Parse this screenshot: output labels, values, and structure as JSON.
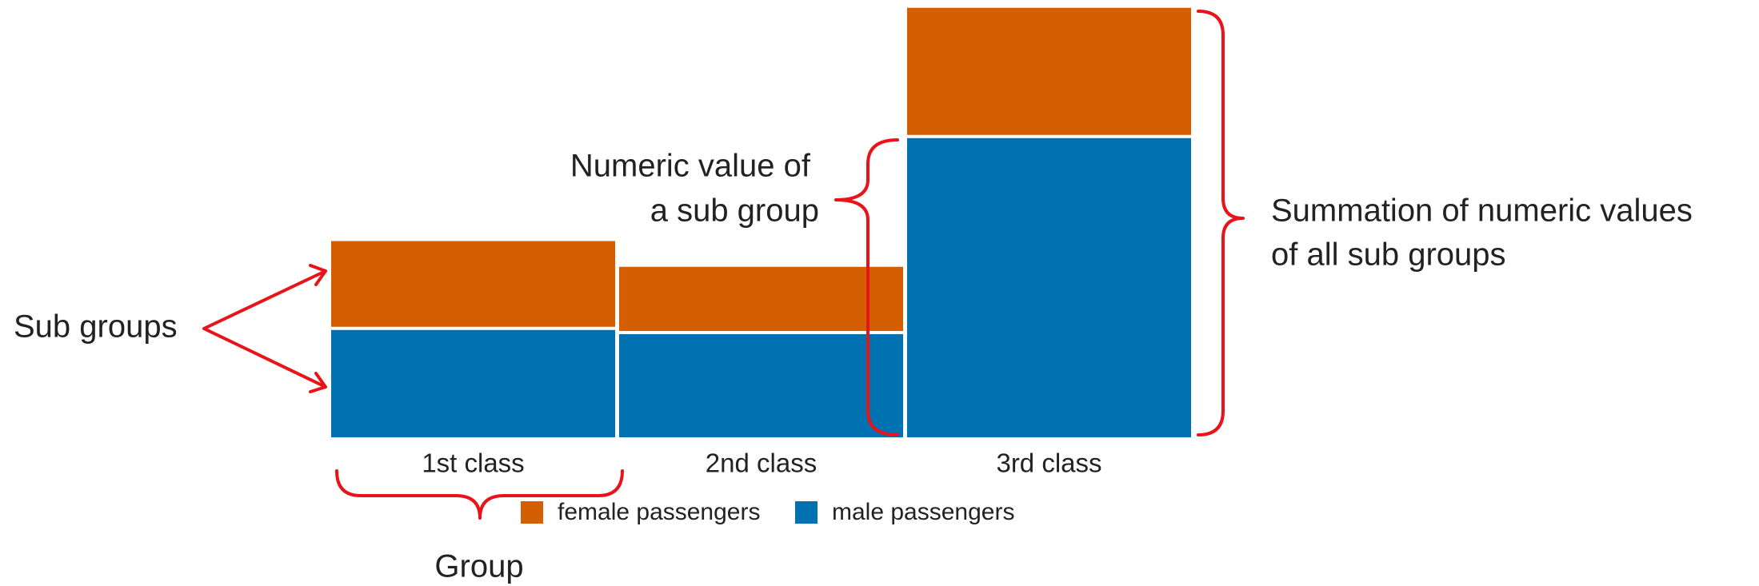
{
  "chart_data": {
    "type": "stacked_bar",
    "categories": [
      "1st class",
      "2nd class",
      "3rd class"
    ],
    "series": [
      {
        "name": "female passengers",
        "color": "#d35f00",
        "values": [
          143,
          107,
          212
        ]
      },
      {
        "name": "male passengers",
        "color": "#0072b2",
        "values": [
          179,
          172,
          499
        ]
      }
    ],
    "annotations": {
      "sub_groups": "Sub groups",
      "group": "Group",
      "sub_group_value": [
        "Numeric value of",
        "a sub group"
      ],
      "summation": [
        "Summation of numeric values",
        "of all sub groups"
      ]
    }
  }
}
